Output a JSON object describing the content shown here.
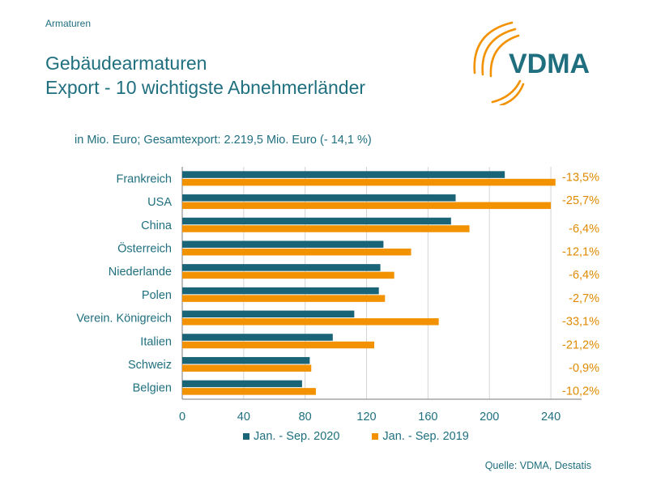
{
  "header": {
    "section": "Armaturen",
    "title_line1": "Gebäudearmaturen",
    "title_line2": "Export - 10 wichtigste Abnehmerländer",
    "brand": "VDMA"
  },
  "subtitle": "in Mio. Euro; Gesamtexport: 2.219,5 Mio. Euro (- 14,1 %)",
  "source": "Quelle: VDMA, Destatis",
  "colors": {
    "series_2020": "#1a6478",
    "series_2019": "#f39200",
    "text": "#1f6f7f",
    "change_label": "#e08a00"
  },
  "chart_data": {
    "type": "bar",
    "orientation": "horizontal",
    "categories": [
      "Frankreich",
      "USA",
      "China",
      "Österreich",
      "Niederlande",
      "Polen",
      "Verein. Königreich",
      "Italien",
      "Schweiz",
      "Belgien"
    ],
    "series": [
      {
        "name": "Jan. - Sep. 2020",
        "values": [
          210,
          178,
          175,
          131,
          129,
          128,
          112,
          98,
          83,
          78
        ]
      },
      {
        "name": "Jan. - Sep. 2019",
        "values": [
          243,
          240,
          187,
          149,
          138,
          132,
          167,
          125,
          84,
          87
        ]
      }
    ],
    "change_labels": [
      "-13,5%",
      "-25,7%",
      "-6,4%",
      "-12,1%",
      "-6,4%",
      "-2,7%",
      "-33,1%",
      "-21,2%",
      "-0,9%",
      "-10,2%"
    ],
    "xticks": [
      0,
      40,
      80,
      120,
      160,
      200,
      240
    ],
    "xlim": [
      0,
      260
    ],
    "grid": true,
    "legend_position": "bottom"
  }
}
